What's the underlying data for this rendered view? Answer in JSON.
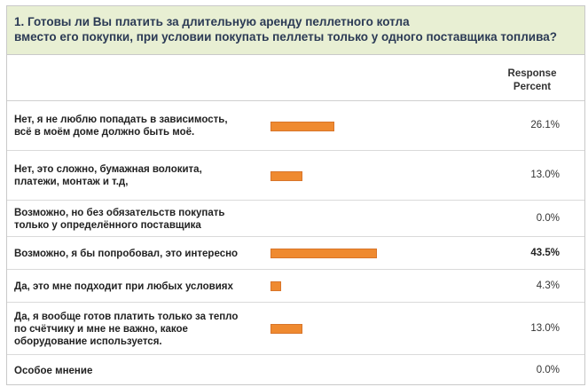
{
  "question": {
    "title_line1": "1. Готовы ли Вы платить за длительную аренду пеллетного котла",
    "title_line2": "вместо его покупки, при условии покупать пеллеты только у одного поставщика топлива?"
  },
  "header": {
    "response_percent_line1": "Response",
    "response_percent_line2": "Percent"
  },
  "chart_data": {
    "type": "bar",
    "orientation": "horizontal",
    "categories": [
      "Нет, я не люблю попадать в зависимость, всё в моём доме должно быть моё.",
      "Нет, это сложно, бумажная волокита, платежи, монтаж и т.д,",
      "Возможно, но без обязательств покупать только у определённого поставщика",
      "Возможно, я бы попробовал, это интересно",
      "Да, это мне подходит при любых условиях",
      "Да, я вообще готов платить только за тепло по счётчику и мне не важно, какое оборудование используется.",
      "Особое мнение"
    ],
    "values": [
      26.1,
      13.0,
      0.0,
      43.5,
      4.3,
      13.0,
      0.0
    ],
    "value_labels": [
      "26.1%",
      "13.0%",
      "0.0%",
      "43.5%",
      "4.3%",
      "13.0%",
      "0.0%"
    ],
    "highlight_index": 3,
    "bar_color": "#ef8a30",
    "xlim": [
      0,
      100
    ],
    "title": "1. Готовы ли Вы платить за длительную аренду пеллетного котла вместо его покупки, при условии покупать пеллеты только у одного поставщика топлива?",
    "xlabel": "",
    "ylabel": "Response Percent"
  },
  "rows": [
    {
      "label_lines": [
        "Нет, я не люблю попадать в зависимость,",
        "всё в моём доме должно быть моё."
      ],
      "pct": "26.1%"
    },
    {
      "label_lines": [
        "Нет, это сложно, бумажная волокита,",
        "платежи, монтаж и т.д,"
      ],
      "pct": "13.0%"
    },
    {
      "label_lines": [
        "Возможно, но без обязательств покупать",
        "только у определённого поставщика"
      ],
      "pct": "0.0%"
    },
    {
      "label_lines": [
        "Возможно, я бы попробовал, это интересно"
      ],
      "pct": "43.5%"
    },
    {
      "label_lines": [
        "Да, это мне подходит при любых условиях"
      ],
      "pct": "4.3%"
    },
    {
      "label_lines": [
        "Да, я вообще готов платить только за тепло",
        "по счётчику и мне не важно, какое",
        "оборудование используется."
      ],
      "pct": "13.0%"
    },
    {
      "label_lines": [
        "Особое мнение"
      ],
      "pct": "0.0%"
    }
  ]
}
